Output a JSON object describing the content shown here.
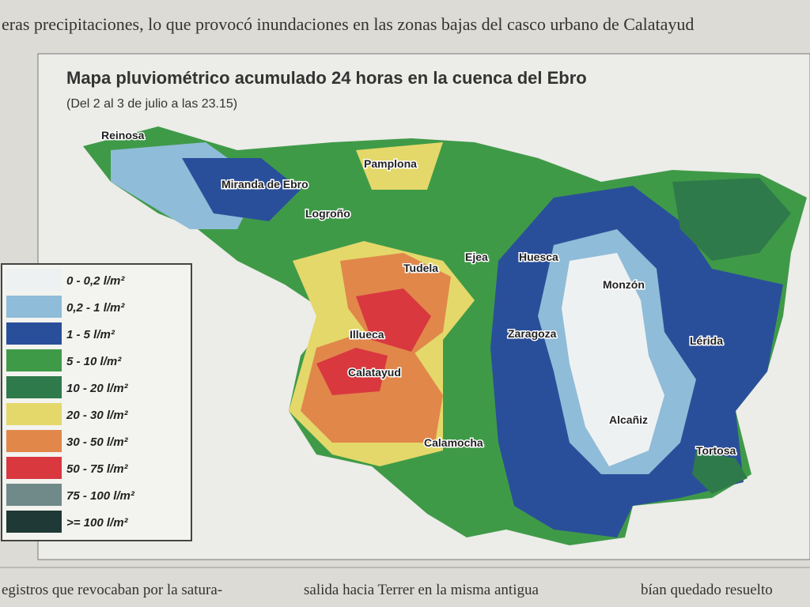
{
  "article": {
    "top_line": "eras precipitaciones, lo que provocó inundaciones en las zonas bajas del casco urbano de Calatayud",
    "bottom_columns": [
      "egistros que revocaban por la satura-",
      "salida hacia Terrer en la misma antigua",
      "bían quedado resuelto"
    ]
  },
  "map": {
    "title": "Mapa pluviométrico acumulado 24 horas en la cuenca del Ebro",
    "subtitle": "(Del 2 al 3 de julio a las 23.15)",
    "legend": [
      {
        "label": "0 - 0,2 l/m²",
        "color": "#eef1f2"
      },
      {
        "label": "0,2 - 1 l/m²",
        "color": "#8fbcd8"
      },
      {
        "label": "1 - 5 l/m²",
        "color": "#2a4f9a"
      },
      {
        "label": "5 - 10 l/m²",
        "color": "#3f9a48"
      },
      {
        "label": "10 - 20 l/m²",
        "color": "#2f7a4a"
      },
      {
        "label": "20 - 30 l/m²",
        "color": "#e4d86a"
      },
      {
        "label": "30 - 50 l/m²",
        "color": "#e1874a"
      },
      {
        "label": "50 - 75 l/m²",
        "color": "#d9383f"
      },
      {
        "label": "75 - 100 l/m²",
        "color": "#6f8a88"
      },
      {
        "label": ">= 100 l/m²",
        "color": "#1f3a36"
      }
    ],
    "cities": [
      "Reinosa",
      "Pamplona",
      "Miranda de Ebro",
      "Logroño",
      "Tudela",
      "Ejea",
      "Huesca",
      "Monzón",
      "Illueca",
      "Zaragoza",
      "Lérida",
      "Calatayud",
      "Alcañiz",
      "Calamocha",
      "Tortosa"
    ]
  }
}
